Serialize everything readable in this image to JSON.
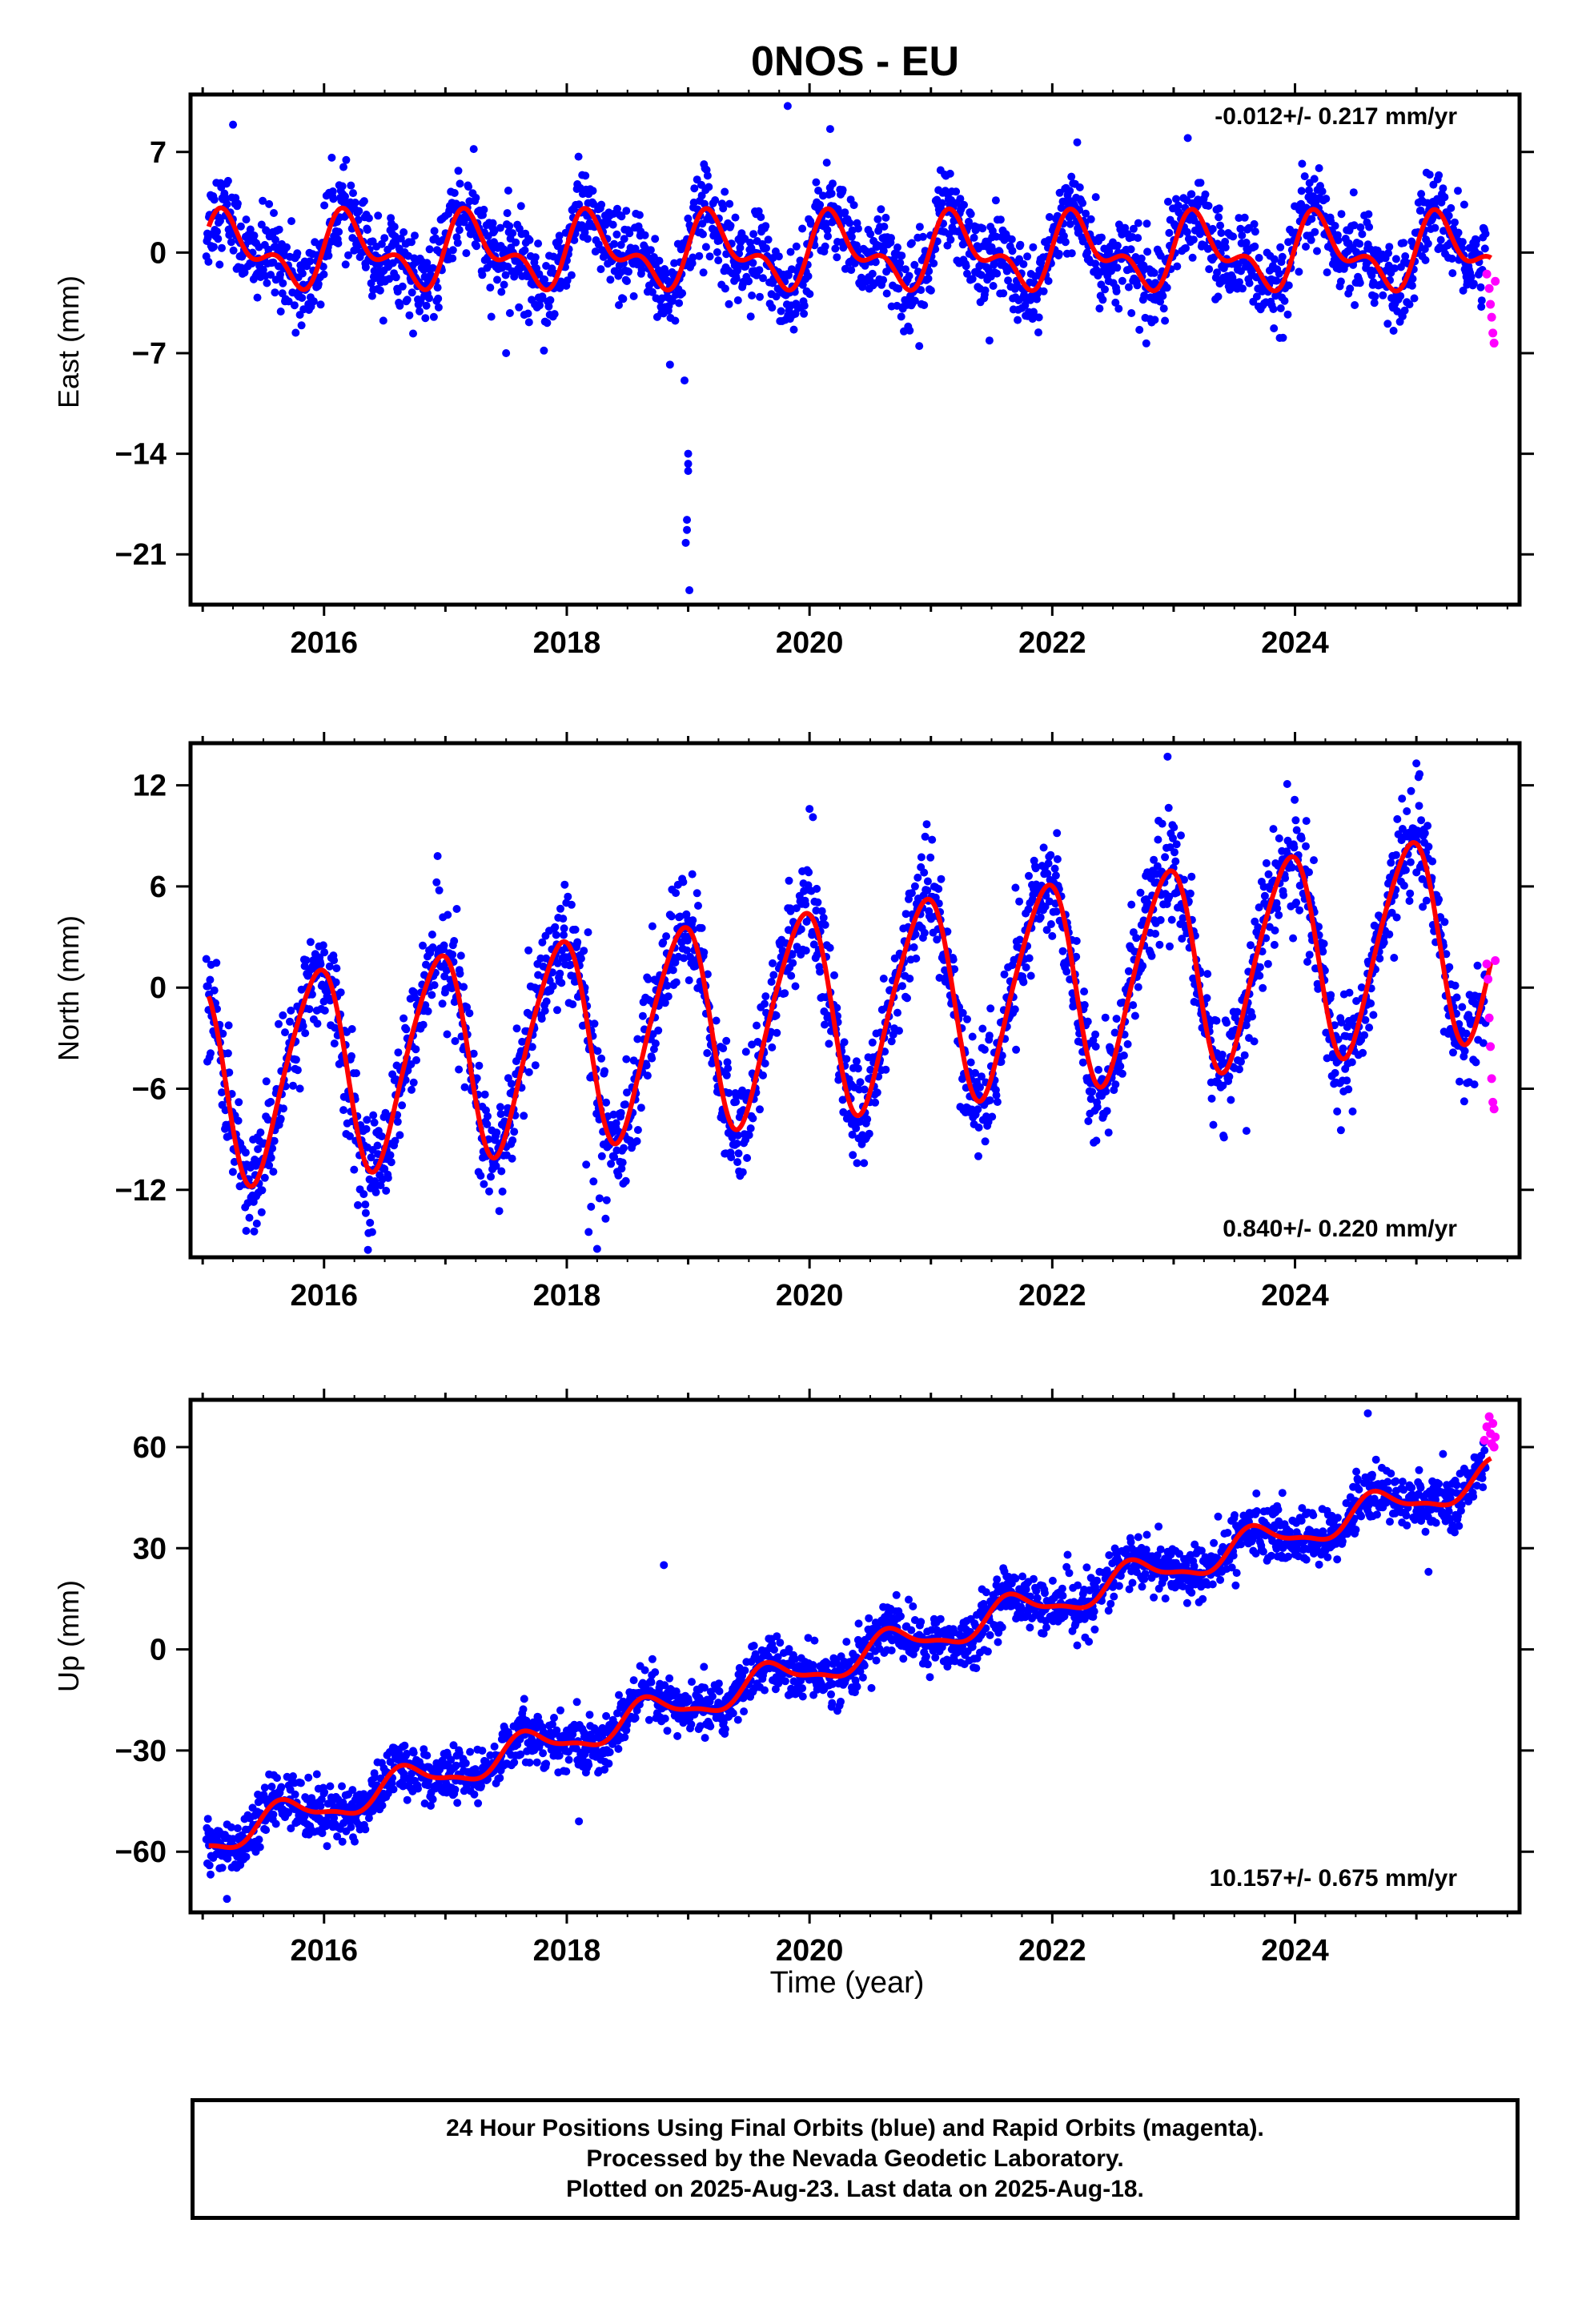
{
  "title": "0NOS - EU",
  "xlabel": "Time (year)",
  "colors": {
    "final_orbits": "#0000ff",
    "rapid_orbits": "#ff00ff",
    "model": "#ff0000",
    "frame": "#000000"
  },
  "footer": {
    "line1": "24 Hour Positions Using Final Orbits (blue) and Rapid Orbits (magenta).",
    "line2": "Processed by the Nevada Geodetic Laboratory.",
    "line3": "Plotted on 2025-Aug-23. Last data on 2025-Aug-18."
  },
  "chart_data": [
    {
      "type": "scatter",
      "ylabel": "East (mm)",
      "xlim": [
        2014.9,
        2025.85
      ],
      "ylim": [
        -24.5,
        11
      ],
      "xticks": [
        2016,
        2018,
        2020,
        2022,
        2024
      ],
      "yticks": [
        7,
        0,
        -7,
        -14,
        -21
      ],
      "ytick_labels": [
        "7",
        "0",
        "−7",
        "−14",
        "−21"
      ],
      "rate_label": "-0.012+/- 0.217 mm/yr",
      "rate_position": "top-right",
      "model": {
        "rate": -0.012,
        "offset": 0,
        "annual_amp": 2.0,
        "annual_phase": 0.2,
        "semiannual_amp": 1.3,
        "semiannual_phase": 0.0
      },
      "noise": 1.5,
      "outliers": [
        [
          2018.85,
          -7.8
        ],
        [
          2018.97,
          -8.9
        ],
        [
          2019.0,
          -14.0
        ],
        [
          2019.0,
          -14.7
        ],
        [
          2019.0,
          -15.2
        ],
        [
          2018.99,
          -18.6
        ],
        [
          2018.99,
          -19.3
        ],
        [
          2018.98,
          -20.2
        ],
        [
          2019.01,
          -23.5
        ],
        [
          2019.82,
          10.2
        ],
        [
          2020.17,
          8.6
        ],
        [
          2017.5,
          -7.0
        ],
        [
          2015.25,
          8.9
        ]
      ],
      "rapid_points": [
        [
          2025.58,
          -1.5
        ],
        [
          2025.6,
          -2.5
        ],
        [
          2025.61,
          -3.6
        ],
        [
          2025.62,
          -4.5
        ],
        [
          2025.63,
          -5.6
        ],
        [
          2025.64,
          -6.3
        ],
        [
          2025.65,
          -2.0
        ]
      ]
    },
    {
      "type": "scatter",
      "ylabel": "North (mm)",
      "xlim": [
        2014.9,
        2025.85
      ],
      "ylim": [
        -16,
        14.5
      ],
      "xticks": [
        2016,
        2018,
        2020,
        2022,
        2024
      ],
      "yticks": [
        12,
        6,
        0,
        -6,
        -12
      ],
      "ytick_labels": [
        "12",
        "6",
        "0",
        "−6",
        "−12"
      ],
      "rate_label": "0.840+/- 0.220 mm/yr",
      "rate_position": "bottom-right",
      "model": {
        "rate": 0.84,
        "offset": -1.5,
        "annual_amp": 6.0,
        "annual_phase": 2.0,
        "semiannual_amp": 0.8,
        "semiannual_phase": 0.5
      },
      "noise": 1.6,
      "outliers": [
        [
          2018.18,
          -14.5
        ],
        [
          2018.2,
          -13.0
        ],
        [
          2018.22,
          -11.5
        ],
        [
          2018.25,
          -15.5
        ],
        [
          2018.27,
          -12.5
        ],
        [
          2018.16,
          -10.5
        ],
        [
          2020.0,
          10.6
        ],
        [
          2022.95,
          13.7
        ],
        [
          2025.0,
          13.3
        ],
        [
          2023.6,
          -8.5
        ]
      ],
      "rapid_points": [
        [
          2025.58,
          1.4
        ],
        [
          2025.59,
          0.5
        ],
        [
          2025.6,
          -1.8
        ],
        [
          2025.61,
          -3.5
        ],
        [
          2025.62,
          -5.4
        ],
        [
          2025.63,
          -6.8
        ],
        [
          2025.64,
          -7.2
        ],
        [
          2025.65,
          1.6
        ]
      ]
    },
    {
      "type": "scatter",
      "ylabel": "Up (mm)",
      "xlim": [
        2014.9,
        2025.85
      ],
      "ylim": [
        -78,
        74
      ],
      "xticks": [
        2016,
        2018,
        2020,
        2022,
        2024
      ],
      "yticks": [
        60,
        30,
        0,
        -30,
        -60
      ],
      "ytick_labels": [
        "60",
        "30",
        "0",
        "−30",
        "−60"
      ],
      "rate_label": "10.157+/- 0.675 mm/yr",
      "rate_position": "bottom-right",
      "model": {
        "rate": 10.157,
        "offset": -6.0,
        "annual_amp": 4.5,
        "annual_phase": 3.6,
        "semiannual_amp": 1.5,
        "semiannual_phase": 0.3
      },
      "noise": 4.0,
      "outliers": [
        [
          2018.8,
          25
        ],
        [
          2024.6,
          70
        ],
        [
          2015.2,
          -74
        ],
        [
          2018.1,
          -51
        ],
        [
          2025.1,
          23
        ]
      ],
      "rapid_points": [
        [
          2025.56,
          62
        ],
        [
          2025.58,
          66
        ],
        [
          2025.6,
          69
        ],
        [
          2025.61,
          64
        ],
        [
          2025.62,
          61
        ],
        [
          2025.63,
          67
        ],
        [
          2025.64,
          60
        ],
        [
          2025.65,
          63
        ]
      ]
    }
  ]
}
